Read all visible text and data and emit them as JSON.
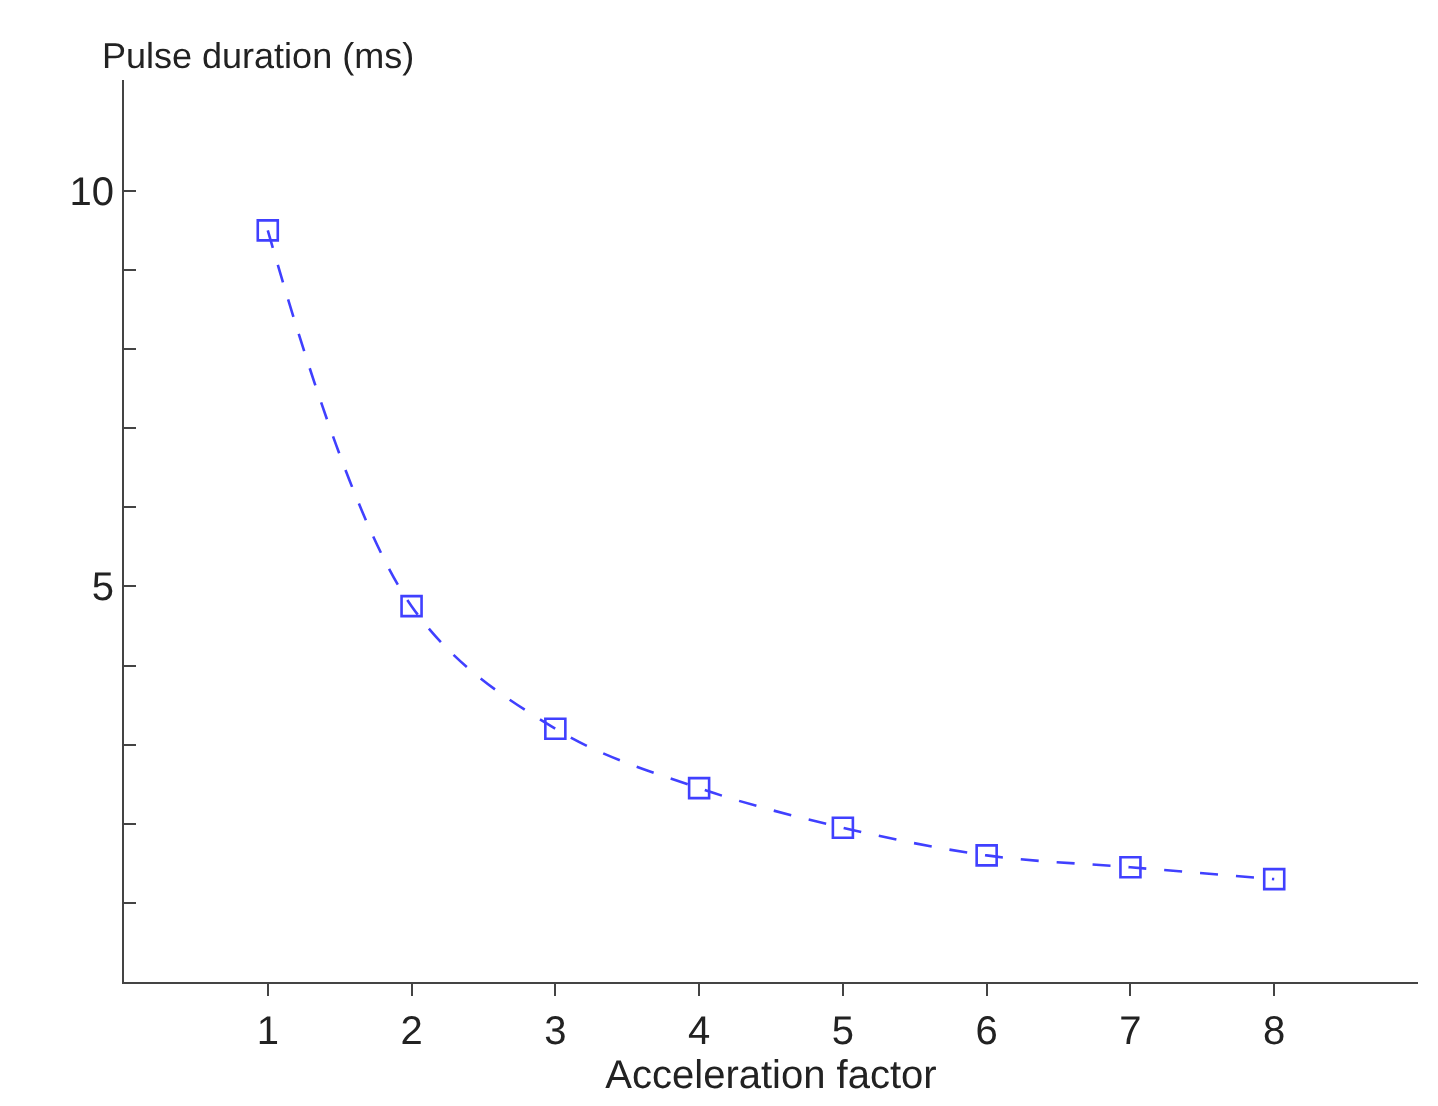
{
  "chart_data": {
    "type": "line",
    "ylabel": "Pulse duration (ms)",
    "xlabel": "Acceleration factor",
    "x": [
      1,
      2,
      3,
      4,
      5,
      6,
      7,
      8
    ],
    "series": [
      {
        "color": "#4040ff",
        "values": [
          9.5,
          4.75,
          3.2,
          2.45,
          1.95,
          1.6,
          1.45,
          1.3
        ]
      }
    ],
    "xlim": [
      0,
      9
    ],
    "xticks": [
      1,
      2,
      3,
      4,
      5,
      6,
      7,
      8
    ],
    "ylim": [
      0,
      11.4
    ],
    "yticks": [
      {
        "value": 1,
        "label": null
      },
      {
        "value": 2,
        "label": null
      },
      {
        "value": 3,
        "label": null
      },
      {
        "value": 4,
        "label": null
      },
      5,
      {
        "value": 6,
        "label": null
      },
      {
        "value": 7,
        "label": null
      },
      {
        "value": 8,
        "label": null
      },
      {
        "value": 9,
        "label": null
      },
      10
    ],
    "legend": false,
    "marker": "square",
    "line_style": "dashed"
  }
}
